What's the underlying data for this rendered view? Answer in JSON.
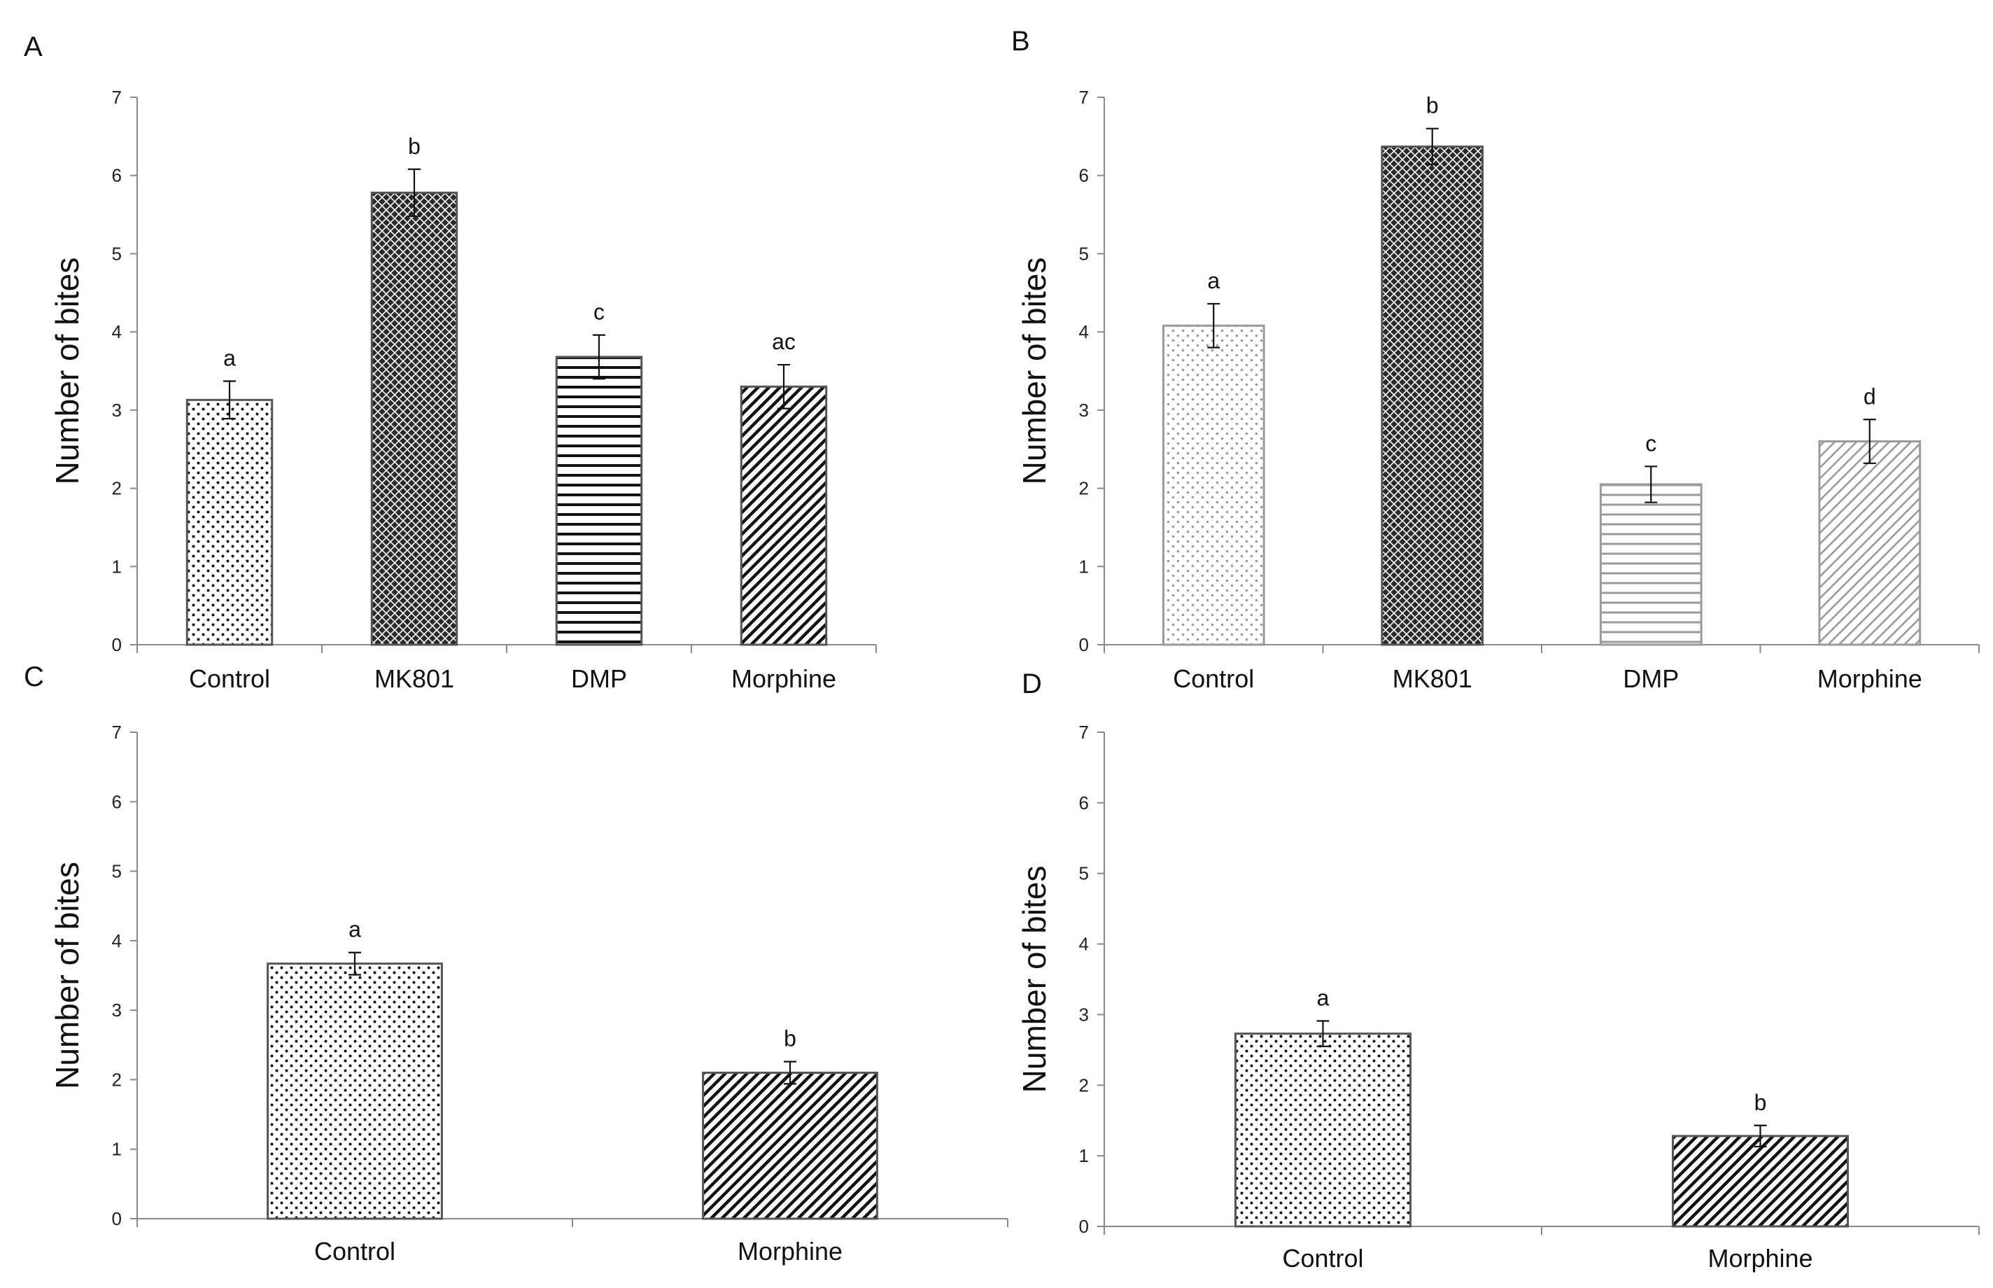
{
  "chart_data": [
    {
      "panel": "A",
      "type": "bar",
      "ylabel": "Number of bites",
      "xlabel": "",
      "ylim": [
        0,
        7
      ],
      "yticks": [
        0,
        1,
        2,
        3,
        4,
        5,
        6,
        7
      ],
      "categories": [
        "Control",
        "MK801",
        "DMP",
        "Morphine"
      ],
      "values": [
        3.13,
        5.78,
        3.68,
        3.3
      ],
      "errors": [
        0.24,
        0.3,
        0.28,
        0.28
      ],
      "labels": [
        "a",
        "b",
        "c",
        "ac"
      ],
      "patterns": [
        "dots",
        "crosshatch",
        "hlines",
        "diag"
      ]
    },
    {
      "panel": "B",
      "type": "bar",
      "ylabel": "Number of bites",
      "xlabel": "",
      "ylim": [
        0,
        7
      ],
      "yticks": [
        0,
        1,
        2,
        3,
        4,
        5,
        6,
        7
      ],
      "categories": [
        "Control",
        "MK801",
        "DMP",
        "Morphine"
      ],
      "values": [
        4.08,
        6.37,
        2.05,
        2.6
      ],
      "errors": [
        0.28,
        0.23,
        0.23,
        0.28
      ],
      "labels": [
        "a",
        "b",
        "c",
        "d"
      ],
      "patterns": [
        "dots-light",
        "crosshatch",
        "hlines-light",
        "diag-light"
      ]
    },
    {
      "panel": "C",
      "type": "bar",
      "ylabel": "Number of bites",
      "xlabel": "",
      "ylim": [
        0,
        7
      ],
      "yticks": [
        0,
        1,
        2,
        3,
        4,
        5,
        6,
        7
      ],
      "categories": [
        "Control",
        "Morphine"
      ],
      "values": [
        3.67,
        2.1
      ],
      "errors": [
        0.16,
        0.16
      ],
      "labels": [
        "a",
        "b"
      ],
      "patterns": [
        "dots",
        "diag"
      ]
    },
    {
      "panel": "D",
      "type": "bar",
      "ylabel": "Number of bites",
      "xlabel": "",
      "ylim": [
        0,
        7
      ],
      "yticks": [
        0,
        1,
        2,
        3,
        4,
        5,
        6,
        7
      ],
      "categories": [
        "Control",
        "Morphine"
      ],
      "values": [
        2.73,
        1.28
      ],
      "errors": [
        0.18,
        0.15
      ],
      "labels": [
        "a",
        "b"
      ],
      "patterns": [
        "dots",
        "diag"
      ]
    }
  ],
  "colors": {
    "axis": "#8a8a8a",
    "bar_outline": "#555555",
    "ink": "#111111",
    "light_ink": "#9a9a9a"
  }
}
